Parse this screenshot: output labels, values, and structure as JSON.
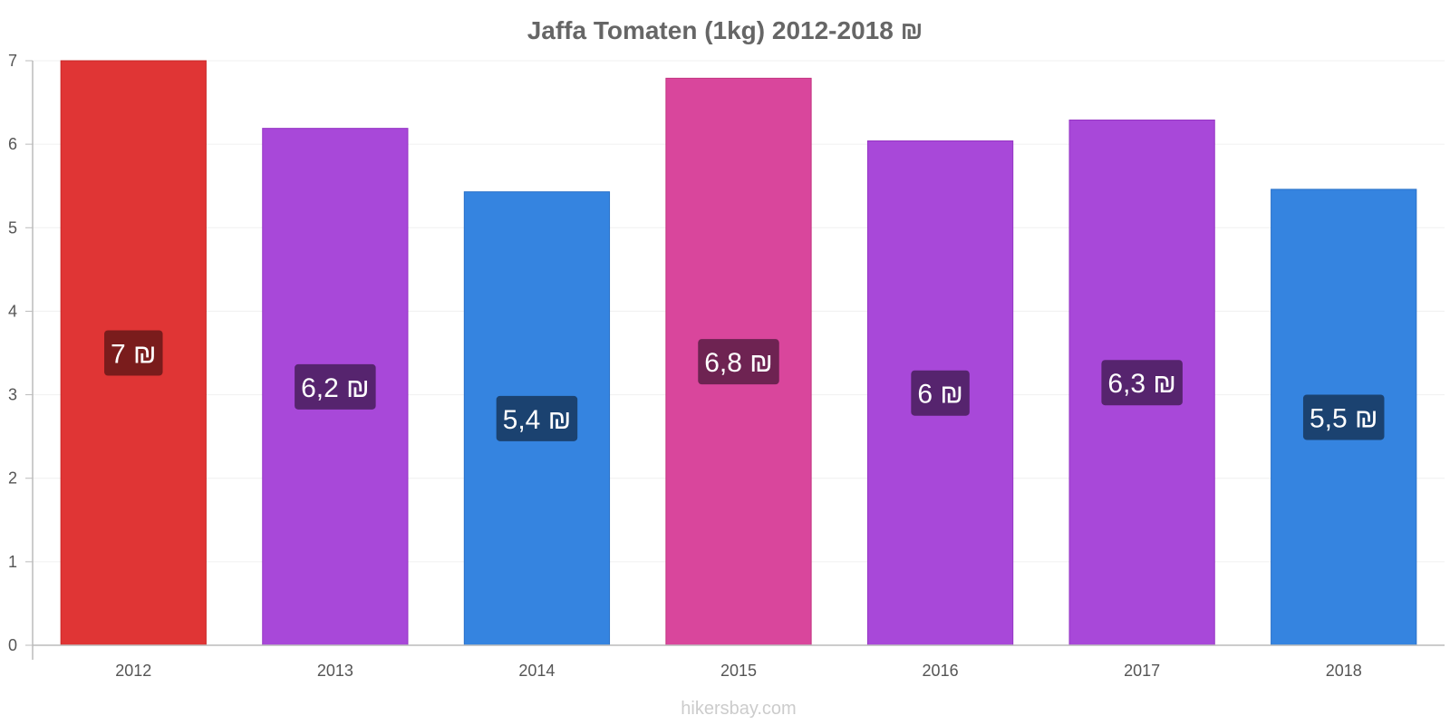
{
  "chart_data": {
    "type": "bar",
    "title": "Jaffa Tomaten (1kg) 2012-2018 ₪",
    "xlabel": "",
    "ylabel": "",
    "ylim": [
      0,
      7
    ],
    "yticks": [
      "0",
      "1",
      "2",
      "3",
      "4",
      "5",
      "6",
      "7"
    ],
    "grid": true,
    "categories": [
      "2012",
      "2013",
      "2014",
      "2015",
      "2016",
      "2017",
      "2018"
    ],
    "values": [
      7.0,
      6.19,
      5.43,
      6.79,
      6.04,
      6.29,
      5.46
    ],
    "value_labels": [
      "7 ₪",
      "6,2 ₪",
      "5,4 ₪",
      "6,8 ₪",
      "6 ₪",
      "6,3 ₪",
      "5,5 ₪"
    ],
    "bar_colors": [
      "#e03535",
      "#a848d9",
      "#3584e0",
      "#d9469c",
      "#a848d9",
      "#a848d9",
      "#3584e0"
    ],
    "bar_stroke_colors": [
      "#c92b2b",
      "#9535c4",
      "#2a71c9",
      "#c2337f",
      "#9535c4",
      "#9535c4",
      "#2a71c9"
    ],
    "label_box_colors": [
      "#7a1c1c",
      "#56246e",
      "#1b4270",
      "#6e2352",
      "#56246e",
      "#56246e",
      "#1b4270"
    ]
  },
  "watermark": "hikersbay.com"
}
